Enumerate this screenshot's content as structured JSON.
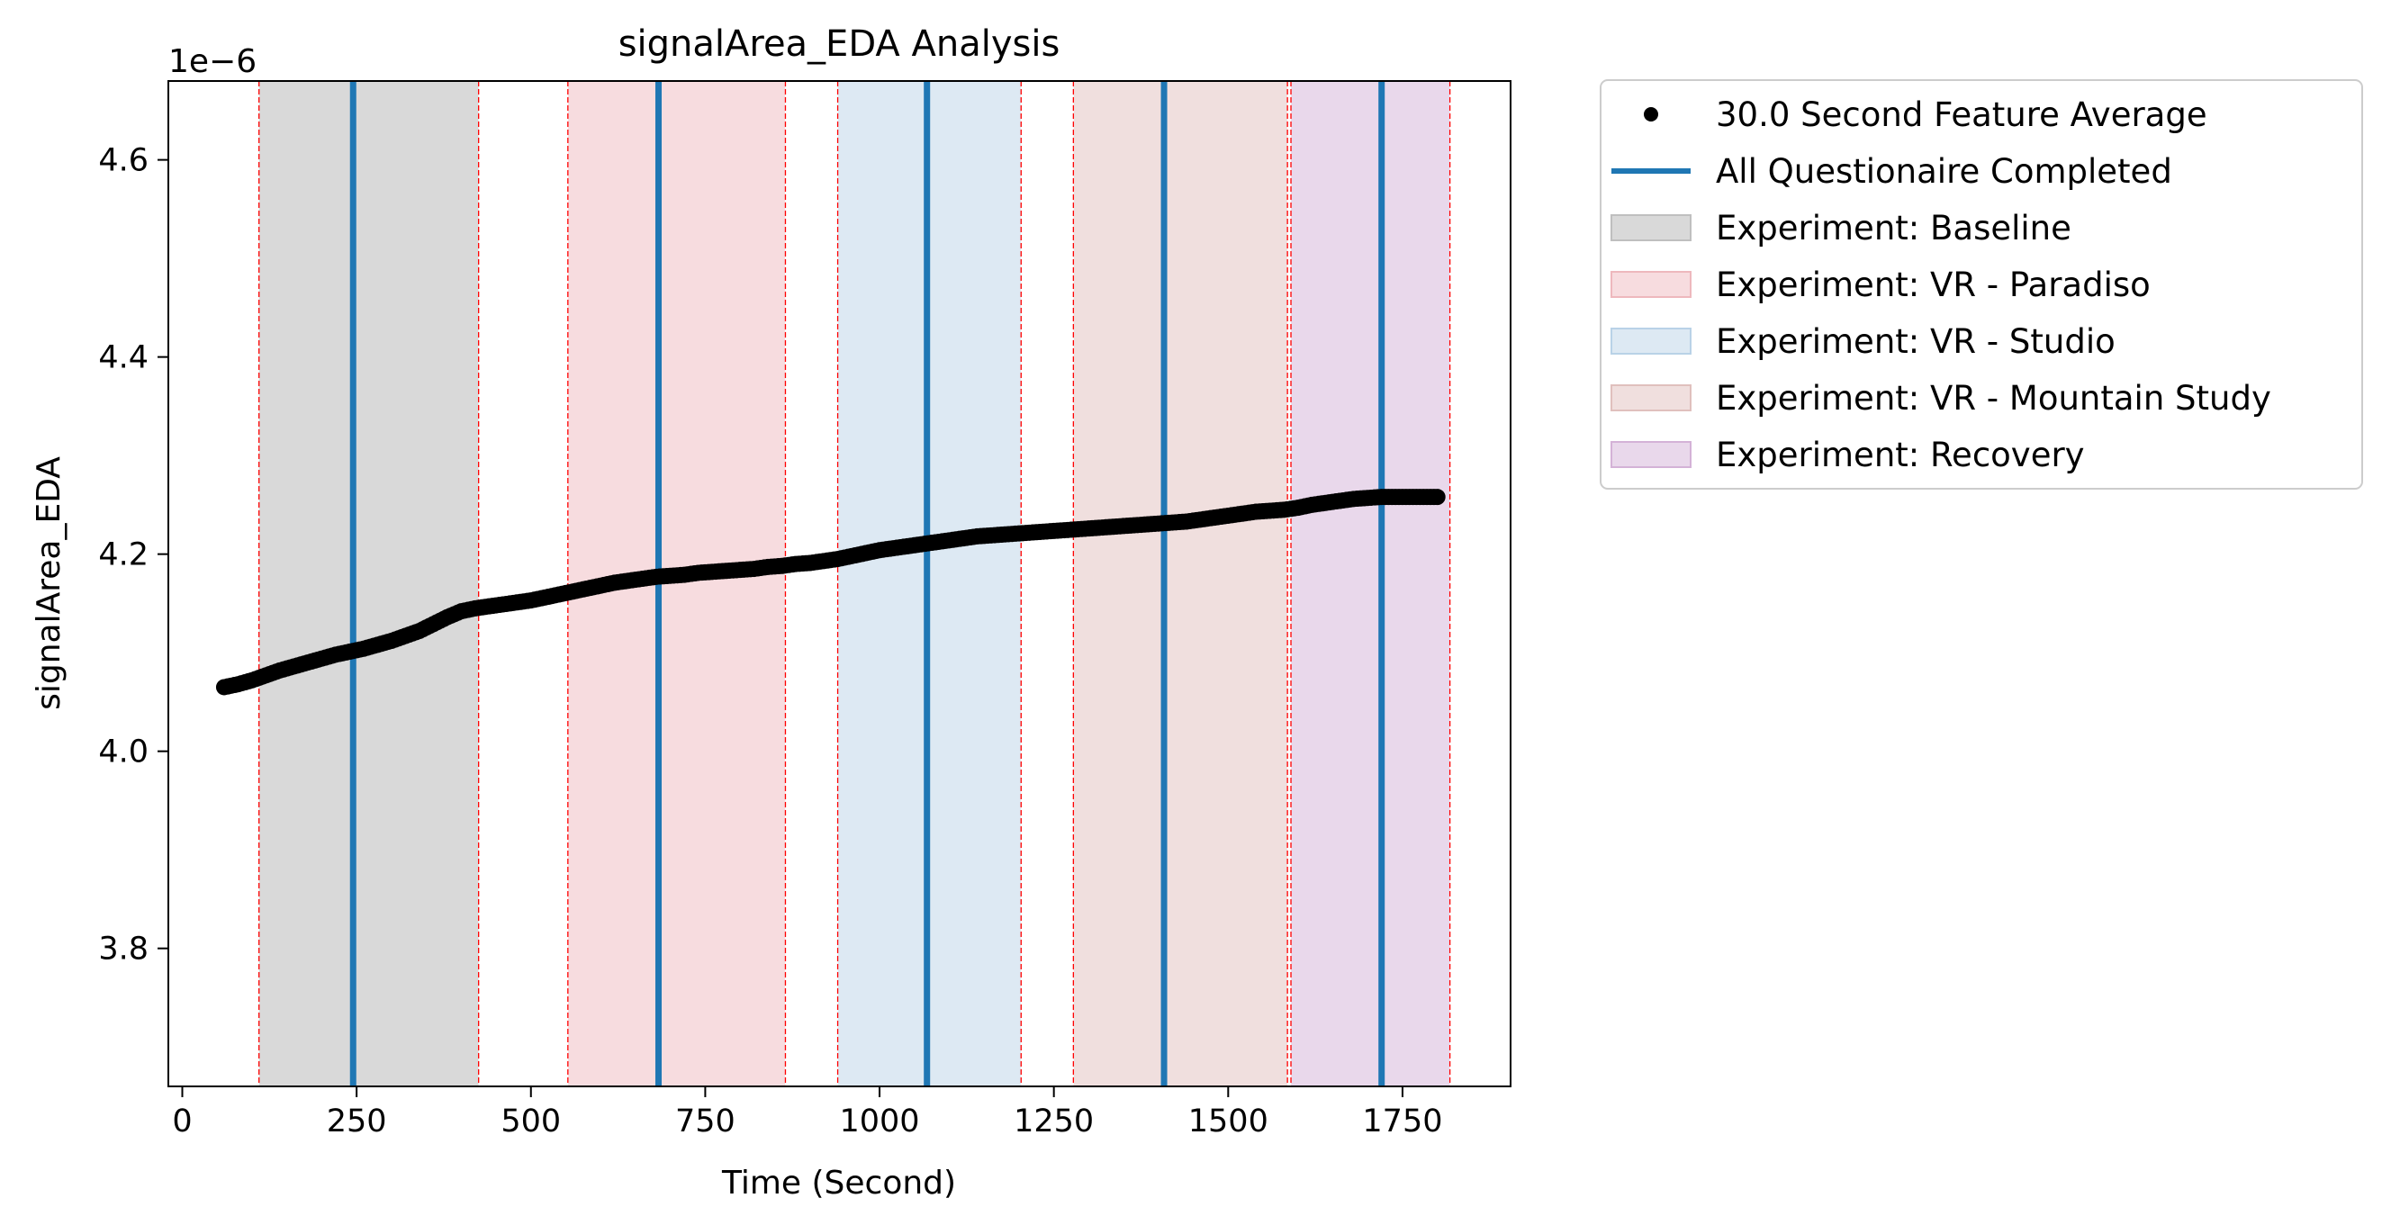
{
  "chart_data": {
    "type": "scatter",
    "title": "signalArea_EDA Analysis",
    "xlabel": "Time (Second)",
    "ylabel": "signalArea_EDA",
    "y_offset_label": "1e−6",
    "xlim": [
      -20,
      1905
    ],
    "ylim": [
      3.66,
      4.68
    ],
    "x_ticks": [
      0,
      250,
      500,
      750,
      1000,
      1250,
      1500,
      1750
    ],
    "y_ticks": [
      3.8,
      4.0,
      4.2,
      4.4,
      4.6
    ],
    "y_tick_labels": [
      "3.8",
      "4.0",
      "4.2",
      "4.4",
      "4.6"
    ],
    "grid": false,
    "legend_position": "outside-right-top",
    "series": [
      {
        "name": "30.0 Second Feature Average",
        "kind": "points",
        "color": "#000000",
        "points": [
          [
            60,
            4.065
          ],
          [
            80,
            4.068
          ],
          [
            100,
            4.072
          ],
          [
            120,
            4.077
          ],
          [
            140,
            4.082
          ],
          [
            160,
            4.086
          ],
          [
            180,
            4.09
          ],
          [
            200,
            4.094
          ],
          [
            220,
            4.098
          ],
          [
            240,
            4.101
          ],
          [
            260,
            4.104
          ],
          [
            280,
            4.108
          ],
          [
            300,
            4.112
          ],
          [
            320,
            4.117
          ],
          [
            340,
            4.122
          ],
          [
            360,
            4.129
          ],
          [
            380,
            4.136
          ],
          [
            400,
            4.142
          ],
          [
            420,
            4.145
          ],
          [
            440,
            4.147
          ],
          [
            460,
            4.149
          ],
          [
            480,
            4.151
          ],
          [
            500,
            4.153
          ],
          [
            520,
            4.156
          ],
          [
            540,
            4.159
          ],
          [
            560,
            4.162
          ],
          [
            580,
            4.165
          ],
          [
            600,
            4.168
          ],
          [
            620,
            4.171
          ],
          [
            640,
            4.173
          ],
          [
            660,
            4.175
          ],
          [
            680,
            4.177
          ],
          [
            700,
            4.178
          ],
          [
            720,
            4.179
          ],
          [
            740,
            4.181
          ],
          [
            760,
            4.182
          ],
          [
            780,
            4.183
          ],
          [
            800,
            4.184
          ],
          [
            820,
            4.185
          ],
          [
            840,
            4.187
          ],
          [
            860,
            4.188
          ],
          [
            880,
            4.19
          ],
          [
            900,
            4.191
          ],
          [
            920,
            4.193
          ],
          [
            940,
            4.195
          ],
          [
            960,
            4.198
          ],
          [
            980,
            4.201
          ],
          [
            1000,
            4.204
          ],
          [
            1020,
            4.206
          ],
          [
            1040,
            4.208
          ],
          [
            1060,
            4.21
          ],
          [
            1080,
            4.212
          ],
          [
            1100,
            4.214
          ],
          [
            1120,
            4.216
          ],
          [
            1140,
            4.218
          ],
          [
            1160,
            4.219
          ],
          [
            1180,
            4.22
          ],
          [
            1200,
            4.221
          ],
          [
            1220,
            4.222
          ],
          [
            1240,
            4.223
          ],
          [
            1260,
            4.224
          ],
          [
            1280,
            4.225
          ],
          [
            1300,
            4.226
          ],
          [
            1320,
            4.227
          ],
          [
            1340,
            4.228
          ],
          [
            1360,
            4.229
          ],
          [
            1380,
            4.23
          ],
          [
            1400,
            4.231
          ],
          [
            1420,
            4.232
          ],
          [
            1440,
            4.233
          ],
          [
            1460,
            4.235
          ],
          [
            1480,
            4.237
          ],
          [
            1500,
            4.239
          ],
          [
            1520,
            4.241
          ],
          [
            1540,
            4.243
          ],
          [
            1560,
            4.244
          ],
          [
            1580,
            4.245
          ],
          [
            1600,
            4.247
          ],
          [
            1620,
            4.25
          ],
          [
            1640,
            4.252
          ],
          [
            1660,
            4.254
          ],
          [
            1680,
            4.256
          ],
          [
            1700,
            4.257
          ],
          [
            1720,
            4.258
          ],
          [
            1740,
            4.258
          ],
          [
            1760,
            4.258
          ],
          [
            1780,
            4.258
          ],
          [
            1800,
            4.258
          ]
        ]
      },
      {
        "name": "All Questionaire Completed",
        "kind": "vlines",
        "color": "#1f77b4",
        "x": [
          245,
          683,
          1068,
          1408,
          1720
        ]
      }
    ],
    "spans": [
      {
        "label": "Experiment: Baseline",
        "color": "#d9d9d9",
        "border": "#bfbfbf",
        "ranges": [
          [
            110,
            425
          ]
        ]
      },
      {
        "label": "Experiment: VR - Paradiso",
        "color": "#f7dcdf",
        "border": "#eeb8bd",
        "ranges": [
          [
            553,
            865
          ]
        ]
      },
      {
        "label": "Experiment: VR - Studio",
        "color": "#dde9f3",
        "border": "#b9d2e7",
        "ranges": [
          [
            940,
            1203
          ]
        ]
      },
      {
        "label": "Experiment: VR - Mountain Study",
        "color": "#f0dfde",
        "border": "#e0c0bd",
        "ranges": [
          [
            1278,
            1585
          ]
        ]
      },
      {
        "label": "Experiment: Recovery",
        "color": "#e9d8eb",
        "border": "#d4b2d7",
        "ranges": [
          [
            1590,
            1818
          ]
        ]
      }
    ],
    "boundary_lines": {
      "color": "#ff0000",
      "x": [
        110,
        425,
        553,
        865,
        940,
        1203,
        1278,
        1585,
        1590,
        1818
      ]
    }
  }
}
